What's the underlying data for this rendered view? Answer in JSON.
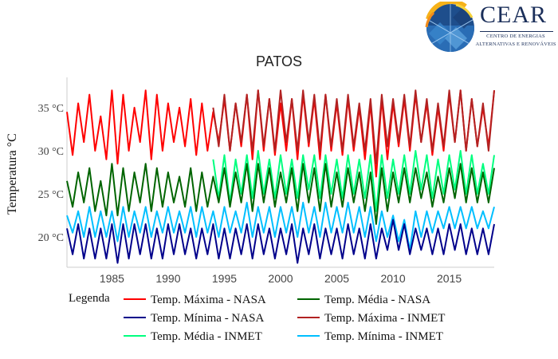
{
  "logo": {
    "name": "CEAR",
    "subtitle_line1": "CENTRO DE ENERGIAS",
    "subtitle_line2": "ALTERNATIVAS E RENOVÁVEIS"
  },
  "chart_data": {
    "type": "line",
    "title": "PATOS",
    "xlabel": "",
    "ylabel": "Temperatura °C",
    "xlim": [
      1981,
      2019
    ],
    "ylim": [
      16.5,
      38.5
    ],
    "x_ticks": [
      1985,
      1990,
      1995,
      2000,
      2005,
      2010,
      2015
    ],
    "y_ticks": [
      20,
      25,
      30,
      35
    ],
    "y_tick_suffix": " °C",
    "grid": false,
    "legend_title": "Legenda",
    "legend_position": "bottom",
    "x": [
      1981.0,
      1981.5,
      1982.0,
      1982.5,
      1983.0,
      1983.5,
      1984.0,
      1984.5,
      1985.0,
      1985.5,
      1986.0,
      1986.5,
      1987.0,
      1987.5,
      1988.0,
      1988.5,
      1989.0,
      1989.5,
      1990.0,
      1990.5,
      1991.0,
      1991.5,
      1992.0,
      1992.5,
      1993.0,
      1993.5,
      1994.0,
      1994.5,
      1995.0,
      1995.5,
      1996.0,
      1996.5,
      1997.0,
      1997.5,
      1998.0,
      1998.5,
      1999.0,
      1999.5,
      2000.0,
      2000.5,
      2001.0,
      2001.5,
      2002.0,
      2002.5,
      2003.0,
      2003.5,
      2004.0,
      2004.5,
      2005.0,
      2005.5,
      2006.0,
      2006.5,
      2007.0,
      2007.5,
      2008.0,
      2008.5,
      2009.0,
      2009.5,
      2010.0,
      2010.5,
      2011.0,
      2011.5,
      2012.0,
      2012.5,
      2013.0,
      2013.5,
      2014.0,
      2014.5,
      2015.0,
      2015.5,
      2016.0,
      2016.5,
      2017.0,
      2017.5,
      2018.0,
      2018.5,
      2019.0
    ],
    "series": [
      {
        "name": "Temp. Máxima - NASA",
        "color": "#ff0000",
        "values": [
          34.5,
          29.5,
          35.5,
          31.0,
          36.5,
          30.0,
          34.0,
          29.0,
          37.0,
          28.5,
          36.5,
          30.0,
          35.0,
          31.0,
          37.0,
          29.0,
          36.5,
          30.0,
          35.5,
          31.0,
          35.0,
          30.5,
          36.0,
          29.5,
          35.5,
          30.0,
          34.5,
          31.0,
          36.0,
          30.0,
          35.5,
          30.5,
          36.5,
          29.0,
          37.0,
          30.0,
          36.0,
          29.5,
          35.5,
          30.0,
          36.0,
          29.0,
          36.5,
          30.5,
          36.0,
          29.0,
          36.5,
          30.0,
          35.5,
          29.5,
          36.0,
          30.0,
          35.0,
          29.0,
          35.5,
          27.0,
          36.0,
          29.0,
          35.5,
          30.5,
          36.0,
          30.0,
          36.5,
          31.0,
          35.5,
          29.5,
          35.0,
          30.0,
          36.5,
          31.0,
          37.0,
          30.0,
          36.0,
          30.5,
          35.0,
          30.5,
          37.0
        ]
      },
      {
        "name": "Temp. Máxima - INMET",
        "color": "#b22222",
        "values": [
          null,
          null,
          null,
          null,
          null,
          null,
          null,
          null,
          null,
          null,
          null,
          null,
          null,
          null,
          null,
          null,
          null,
          null,
          null,
          null,
          null,
          null,
          null,
          null,
          null,
          null,
          35.0,
          30.5,
          36.5,
          30.0,
          35.5,
          31.0,
          36.5,
          30.0,
          37.0,
          30.5,
          36.0,
          30.0,
          37.0,
          31.0,
          36.0,
          30.0,
          37.0,
          31.0,
          36.5,
          30.0,
          36.5,
          30.5,
          36.0,
          30.0,
          36.5,
          30.5,
          35.5,
          30.0,
          36.0,
          28.5,
          36.5,
          30.5,
          36.0,
          31.0,
          36.5,
          30.5,
          37.0,
          31.0,
          36.0,
          30.0,
          35.5,
          30.5,
          37.0,
          31.0,
          37.0,
          30.0,
          36.0,
          30.5,
          35.5,
          30.0,
          37.0
        ]
      },
      {
        "name": "Temp. Média - NASA",
        "color": "#006400",
        "values": [
          26.5,
          23.5,
          27.5,
          24.0,
          28.0,
          23.0,
          26.5,
          22.5,
          28.5,
          22.5,
          28.0,
          23.0,
          27.5,
          24.0,
          28.5,
          23.0,
          28.0,
          23.5,
          27.5,
          24.0,
          27.0,
          23.5,
          28.0,
          23.0,
          27.5,
          23.5,
          27.0,
          24.0,
          28.0,
          23.5,
          27.5,
          24.0,
          28.5,
          23.0,
          28.5,
          24.0,
          28.0,
          23.5,
          27.5,
          24.0,
          28.0,
          23.0,
          28.5,
          24.0,
          28.0,
          23.0,
          28.5,
          23.5,
          27.5,
          23.5,
          28.0,
          24.0,
          27.5,
          23.0,
          27.5,
          21.5,
          28.0,
          23.0,
          27.5,
          24.0,
          28.0,
          24.0,
          28.0,
          24.5,
          27.5,
          23.5,
          27.0,
          24.0,
          28.0,
          24.5,
          28.5,
          24.0,
          28.0,
          24.0,
          27.5,
          24.0,
          28.0
        ]
      },
      {
        "name": "Temp. Média - INMET",
        "color": "#00ff7f",
        "values": [
          null,
          null,
          null,
          null,
          null,
          null,
          null,
          null,
          null,
          null,
          null,
          null,
          null,
          null,
          null,
          null,
          null,
          null,
          null,
          null,
          null,
          null,
          null,
          null,
          null,
          null,
          29.0,
          24.5,
          29.5,
          24.0,
          29.0,
          25.0,
          29.5,
          24.5,
          30.0,
          25.0,
          29.0,
          24.5,
          29.5,
          25.0,
          29.0,
          24.5,
          29.5,
          25.5,
          29.5,
          24.5,
          29.5,
          25.0,
          29.0,
          24.5,
          29.5,
          25.0,
          29.0,
          24.5,
          29.5,
          23.0,
          29.5,
          24.5,
          29.0,
          25.0,
          29.5,
          25.0,
          30.0,
          25.5,
          29.5,
          24.5,
          29.0,
          25.0,
          29.5,
          25.5,
          30.0,
          25.0,
          29.5,
          25.0,
          28.5,
          25.0,
          29.5
        ]
      },
      {
        "name": "Temp. Mínima - NASA",
        "color": "#00008b",
        "values": [
          21.0,
          18.0,
          21.5,
          17.5,
          21.0,
          17.5,
          21.0,
          17.5,
          21.5,
          17.0,
          21.5,
          17.5,
          21.5,
          18.0,
          21.5,
          17.5,
          21.0,
          17.5,
          21.5,
          18.0,
          21.5,
          18.0,
          21.0,
          17.5,
          21.0,
          18.0,
          21.5,
          17.5,
          21.0,
          17.5,
          21.0,
          18.0,
          21.5,
          17.5,
          21.5,
          18.0,
          21.0,
          17.5,
          21.0,
          18.0,
          21.5,
          17.0,
          21.0,
          18.0,
          21.5,
          17.5,
          21.0,
          18.0,
          21.0,
          17.5,
          21.5,
          18.0,
          21.0,
          17.5,
          21.5,
          17.5,
          21.0,
          18.5,
          22.0,
          18.5,
          21.5,
          18.0,
          21.0,
          18.5,
          21.0,
          18.0,
          21.0,
          18.0,
          21.5,
          18.5,
          21.5,
          18.0,
          21.0,
          18.0,
          21.0,
          18.0,
          21.5
        ]
      },
      {
        "name": "Temp. Mínima - INMET",
        "color": "#00bfff",
        "values": [
          22.5,
          20.5,
          23.0,
          20.0,
          23.5,
          20.0,
          23.0,
          20.0,
          23.0,
          19.5,
          23.5,
          20.0,
          23.0,
          20.5,
          23.5,
          20.0,
          23.0,
          20.5,
          23.5,
          20.5,
          23.0,
          20.5,
          23.5,
          20.0,
          23.5,
          20.5,
          23.0,
          20.0,
          23.5,
          20.5,
          23.0,
          20.5,
          24.0,
          20.0,
          23.5,
          20.5,
          23.5,
          20.0,
          23.5,
          20.5,
          23.5,
          20.0,
          24.0,
          20.5,
          23.5,
          20.0,
          24.0,
          20.5,
          23.5,
          20.5,
          24.0,
          20.5,
          23.5,
          20.0,
          23.5,
          19.5,
          23.0,
          20.0,
          22.5,
          19.5,
          22.0,
          18.5,
          23.0,
          20.0,
          23.0,
          20.5,
          23.0,
          21.0,
          23.5,
          21.0,
          23.5,
          21.0,
          23.5,
          21.0,
          23.0,
          21.0,
          23.5
        ]
      }
    ]
  }
}
